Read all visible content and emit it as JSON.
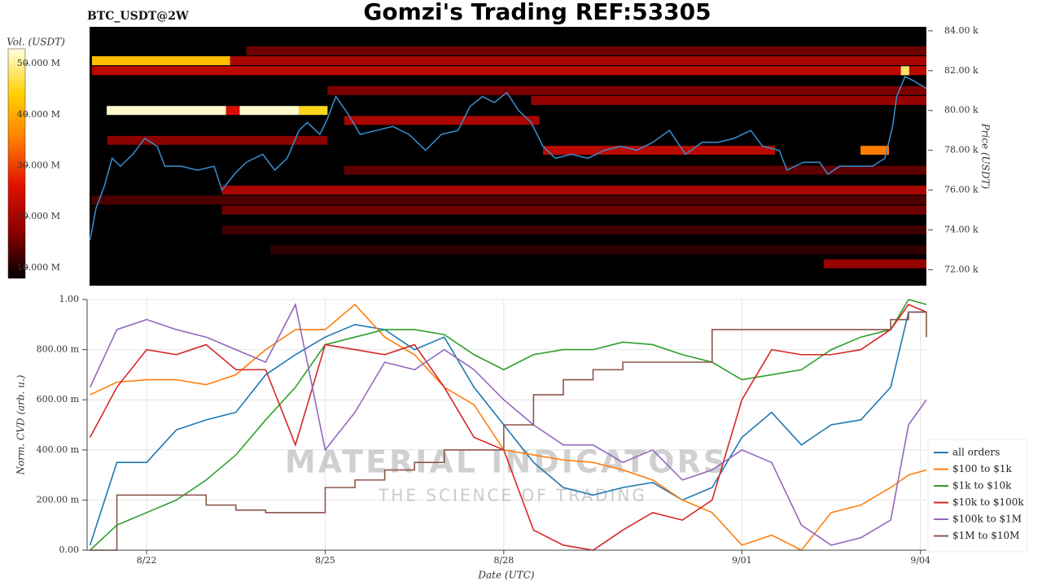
{
  "chart_data": [
    {
      "type": "heatmap",
      "title": "Gomzi's Trading REF:53305",
      "subtitle": "BTC_USDT@2W",
      "ylabel": "Price (USDT)",
      "colorbar_label": "Vol. (USDT)",
      "xlim": [
        0,
        14.1
      ],
      "ylim": [
        71200,
        84200
      ],
      "yticks": [
        {
          "value": 72000,
          "label": "72.00 k"
        },
        {
          "value": 74000,
          "label": "74.00 k"
        },
        {
          "value": 76000,
          "label": "76.00 k"
        },
        {
          "value": 78000,
          "label": "78.00 k"
        },
        {
          "value": 80000,
          "label": "80.00 k"
        },
        {
          "value": 82000,
          "label": "82.00 k"
        },
        {
          "value": 84000,
          "label": "84.00 k"
        }
      ],
      "clim": [
        7900000,
        52900000
      ],
      "cticks": [
        {
          "value": 10000000,
          "label": "10.000 M"
        },
        {
          "value": 20000000,
          "label": "20.000 M"
        },
        {
          "value": 30000000,
          "label": "30.000 M"
        },
        {
          "value": 40000000,
          "label": "40.000 M"
        },
        {
          "value": 50000000,
          "label": "50.000 M"
        }
      ],
      "colorscale": [
        "#000000",
        "#8a0000",
        "#e01000",
        "#ff7a00",
        "#ffd000",
        "#ffffe0"
      ],
      "heatmap": {
        "y": [
          83000,
          82500,
          82500,
          82000,
          82000,
          81000,
          80500,
          80000,
          80000,
          80000,
          80000,
          79500,
          78500,
          78000,
          78000,
          77000,
          76000,
          75500,
          75000,
          74000,
          73000,
          72300
        ],
        "x0": [
          2.64,
          0.04,
          2.37,
          0.04,
          13.67,
          4.01,
          7.44,
          0.29,
          2.3,
          2.53,
          3.53,
          4.29,
          0.3,
          7.64,
          12.99,
          4.29,
          2.23,
          0.04,
          2.23,
          2.23,
          3.05,
          12.37
        ],
        "x1": [
          14.1,
          2.37,
          14.1,
          14.1,
          13.81,
          14.1,
          14.1,
          2.3,
          2.53,
          3.53,
          4.01,
          7.58,
          4.01,
          11.55,
          13.47,
          14.1,
          14.1,
          14.1,
          14.1,
          14.1,
          14.1,
          14.1
        ],
        "values": [
          15000000,
          42000000,
          20000000,
          22000000,
          48000000,
          16000000,
          18000000,
          52000000,
          25000000,
          52000000,
          45000000,
          20000000,
          17000000,
          22000000,
          35000000,
          14000000,
          20000000,
          13000000,
          15000000,
          12000000,
          11000000,
          18000000
        ]
      },
      "price": {
        "color": "#3a8fd0",
        "x": [
          0.01,
          0.11,
          0.25,
          0.38,
          0.52,
          0.73,
          0.93,
          1.14,
          1.27,
          1.55,
          1.82,
          2.1,
          2.23,
          2.44,
          2.64,
          2.92,
          3.12,
          3.33,
          3.53,
          3.67,
          3.88,
          4.01,
          4.15,
          4.36,
          4.56,
          4.84,
          5.11,
          5.38,
          5.66,
          5.93,
          6.21,
          6.41,
          6.62,
          6.82,
          7.03,
          7.23,
          7.44,
          7.64,
          7.85,
          8.12,
          8.4,
          8.67,
          8.95,
          9.22,
          9.49,
          9.77,
          10.04,
          10.32,
          10.59,
          10.86,
          11.14,
          11.34,
          11.62,
          11.75,
          12.03,
          12.3,
          12.44,
          12.64,
          12.92,
          13.19,
          13.4,
          13.53,
          13.6,
          13.74,
          13.88,
          14.1
        ],
        "values": [
          73500,
          75100,
          76200,
          77600,
          77200,
          77800,
          78600,
          78200,
          77200,
          77200,
          77000,
          77200,
          76000,
          76800,
          77400,
          77800,
          77000,
          77600,
          79000,
          79400,
          78800,
          79600,
          80700,
          79800,
          78800,
          79000,
          79200,
          78800,
          78000,
          78800,
          79000,
          80200,
          80700,
          80400,
          80900,
          80000,
          79400,
          78200,
          77600,
          77800,
          77600,
          78000,
          78200,
          78000,
          78400,
          79000,
          77800,
          78400,
          78400,
          78600,
          79000,
          78200,
          78000,
          77000,
          77400,
          77400,
          76800,
          77200,
          77200,
          77200,
          77600,
          79200,
          80700,
          81700,
          81500,
          81100
        ]
      }
    },
    {
      "type": "line",
      "xlabel": "Date (UTC)",
      "ylabel": "Norm. CVD (arb. u.)",
      "watermark": "MATERIAL INDICATORS",
      "watermark_subtitle": "THE SCIENCE OF TRADING",
      "xlim": [
        0,
        14.1
      ],
      "ylim": [
        0,
        1
      ],
      "xticks": [
        {
          "value": 1,
          "label": "8/22"
        },
        {
          "value": 4,
          "label": "8/25"
        },
        {
          "value": 7,
          "label": "8/28"
        },
        {
          "value": 11,
          "label": "9/01"
        },
        {
          "value": 14,
          "label": "9/04"
        }
      ],
      "yticks": [
        {
          "value": 0,
          "label": "0.00"
        },
        {
          "value": 0.2,
          "label": "200.00 m"
        },
        {
          "value": 0.4,
          "label": "400.00 m"
        },
        {
          "value": 0.6,
          "label": "600.00 m"
        },
        {
          "value": 0.8,
          "label": "800.00 m"
        },
        {
          "value": 1,
          "label": "1.00"
        }
      ],
      "grid": true,
      "legend": "right",
      "x": [
        0.05,
        0.5,
        1,
        1.5,
        2,
        2.5,
        3,
        3.5,
        4,
        4.5,
        5,
        5.5,
        6,
        6.5,
        7,
        7.5,
        8,
        8.5,
        9,
        9.5,
        10,
        10.5,
        11,
        11.5,
        12,
        12.5,
        13,
        13.5,
        13.8,
        14.1
      ],
      "series": [
        {
          "name": "all orders",
          "color": "#1f77b4",
          "values": [
            0.02,
            0.35,
            0.35,
            0.48,
            0.52,
            0.55,
            0.7,
            0.78,
            0.85,
            0.9,
            0.88,
            0.8,
            0.85,
            0.65,
            0.5,
            0.35,
            0.25,
            0.22,
            0.25,
            0.27,
            0.2,
            0.25,
            0.45,
            0.55,
            0.42,
            0.5,
            0.52,
            0.65,
            0.95,
            0.95
          ]
        },
        {
          "name": "$100 to $1k",
          "color": "#ff7f0e",
          "values": [
            0.62,
            0.67,
            0.68,
            0.68,
            0.66,
            0.7,
            0.8,
            0.88,
            0.88,
            0.98,
            0.85,
            0.78,
            0.65,
            0.58,
            0.4,
            0.38,
            0.36,
            0.35,
            0.32,
            0.28,
            0.2,
            0.15,
            0.02,
            0.06,
            0,
            0.15,
            0.18,
            0.25,
            0.3,
            0.32
          ]
        },
        {
          "name": "$1k to $10k",
          "color": "#2ca02c",
          "values": [
            0,
            0.1,
            0.15,
            0.2,
            0.28,
            0.38,
            0.52,
            0.65,
            0.82,
            0.85,
            0.88,
            0.88,
            0.86,
            0.78,
            0.72,
            0.78,
            0.8,
            0.8,
            0.83,
            0.82,
            0.78,
            0.75,
            0.68,
            0.7,
            0.72,
            0.8,
            0.85,
            0.88,
            1,
            0.98
          ]
        },
        {
          "name": "$10k to $100k",
          "color": "#d62728",
          "values": [
            0.45,
            0.65,
            0.8,
            0.78,
            0.82,
            0.72,
            0.72,
            0.42,
            0.82,
            0.8,
            0.78,
            0.82,
            0.65,
            0.45,
            0.4,
            0.08,
            0.02,
            0,
            0.08,
            0.15,
            0.12,
            0.2,
            0.6,
            0.8,
            0.78,
            0.78,
            0.8,
            0.88,
            0.98,
            0.95
          ]
        },
        {
          "name": "$100k to $1M",
          "color": "#9467bd",
          "values": [
            0.65,
            0.88,
            0.92,
            0.88,
            0.85,
            0.8,
            0.75,
            0.98,
            0.4,
            0.55,
            0.75,
            0.72,
            0.8,
            0.72,
            0.6,
            0.5,
            0.42,
            0.42,
            0.35,
            0.4,
            0.28,
            0.32,
            0.4,
            0.35,
            0.1,
            0.02,
            0.05,
            0.12,
            0.5,
            0.6
          ]
        },
        {
          "name": "$1M to $10M",
          "color": "#8c564b",
          "step": true,
          "values": [
            0,
            0.22,
            0.22,
            0.22,
            0.18,
            0.16,
            0.15,
            0.15,
            0.25,
            0.28,
            0.32,
            0.35,
            0.4,
            0.4,
            0.5,
            0.62,
            0.68,
            0.72,
            0.75,
            0.75,
            0.75,
            0.88,
            0.88,
            0.88,
            0.88,
            0.88,
            0.88,
            0.92,
            0.95,
            0.85
          ]
        }
      ]
    }
  ]
}
